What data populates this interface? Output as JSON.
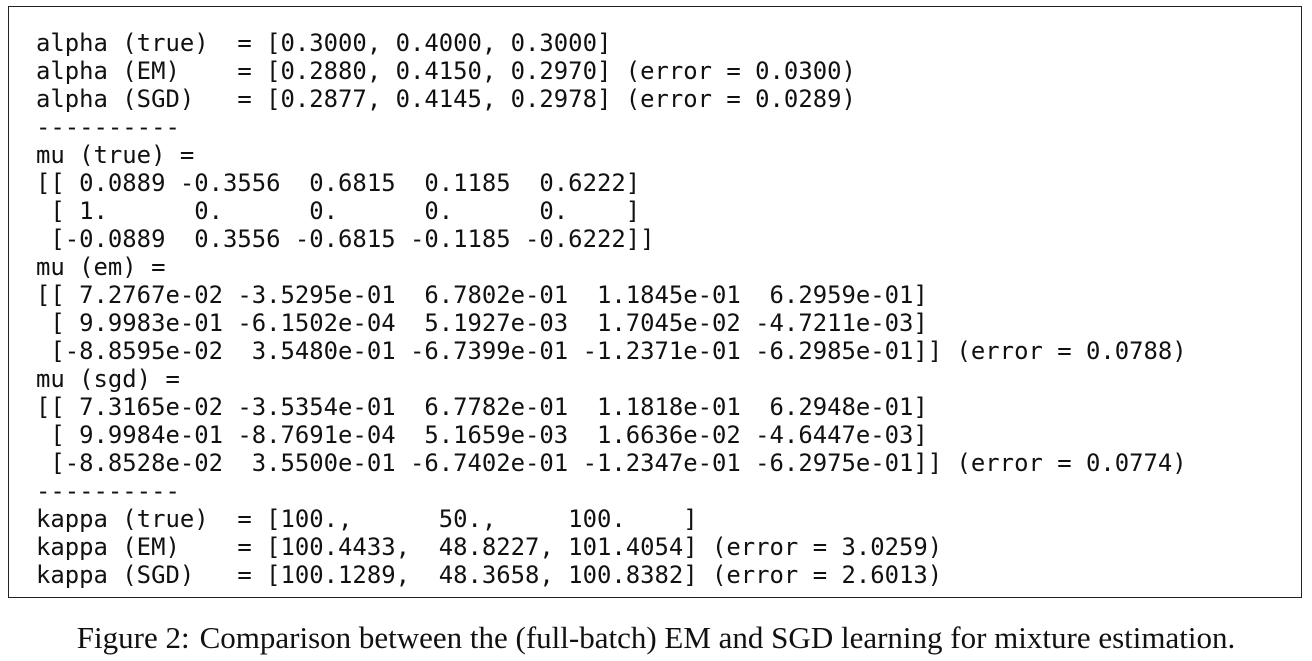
{
  "output": {
    "lines": [
      "alpha (true)  = [0.3000, 0.4000, 0.3000]",
      "alpha (EM)    = [0.2880, 0.4150, 0.2970] (error = 0.0300)",
      "alpha (SGD)   = [0.2877, 0.4145, 0.2978] (error = 0.0289)",
      "----------",
      "mu (true) =",
      "[[ 0.0889 -0.3556  0.6815  0.1185  0.6222]",
      " [ 1.      0.      0.      0.      0.    ]",
      " [-0.0889  0.3556 -0.6815 -0.1185 -0.6222]]",
      "mu (em) =",
      "[[ 7.2767e-02 -3.5295e-01  6.7802e-01  1.1845e-01  6.2959e-01]",
      " [ 9.9983e-01 -6.1502e-04  5.1927e-03  1.7045e-02 -4.7211e-03]",
      " [-8.8595e-02  3.5480e-01 -6.7399e-01 -1.2371e-01 -6.2985e-01]] (error = 0.0788)",
      "mu (sgd) =",
      "[[ 7.3165e-02 -3.5354e-01  6.7782e-01  1.1818e-01  6.2948e-01]",
      " [ 9.9984e-01 -8.7691e-04  5.1659e-03  1.6636e-02 -4.6447e-03]",
      " [-8.8528e-02  3.5500e-01 -6.7402e-01 -1.2347e-01 -6.2975e-01]] (error = 0.0774)",
      "----------",
      "kappa (true)  = [100.,      50.,     100.    ]",
      "kappa (EM)    = [100.4433,  48.8227, 101.4054] (error = 3.0259)",
      "kappa (SGD)   = [100.1289,  48.3658, 100.8382] (error = 2.6013)"
    ]
  },
  "caption": {
    "label": "Figure 2:",
    "text": "Comparison between the (full-batch) EM and SGD learning for mixture estimation."
  }
}
